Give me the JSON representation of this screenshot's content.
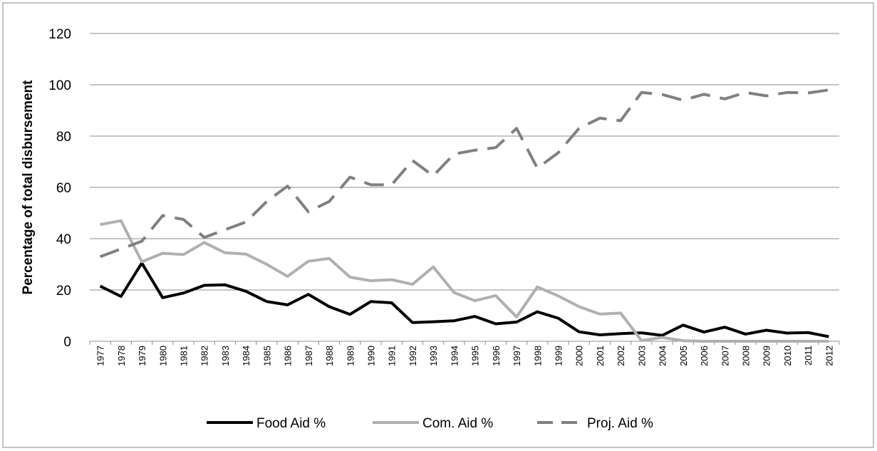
{
  "chart_data": {
    "type": "line",
    "y_label": "Percentage of  total disbursement",
    "categories": [
      "1977",
      "1978",
      "1979",
      "1980",
      "1981",
      "1982",
      "1983",
      "1984",
      "1985",
      "1986",
      "1987",
      "1988",
      "1989",
      "1990",
      "1991",
      "1992",
      "1993",
      "1994",
      "1995",
      "1996",
      "1997",
      "1998",
      "1999",
      "2000",
      "2001",
      "2002",
      "2003",
      "2004",
      "2005",
      "2006",
      "2007",
      "2008",
      "2009",
      "2010",
      "2011",
      "2012"
    ],
    "series": [
      {
        "name": "Food Aid %",
        "color": "#000000",
        "dashed": false,
        "values": [
          21.5,
          17.5,
          30.5,
          17,
          18.8,
          21.8,
          22,
          19.5,
          15.5,
          14.2,
          18.3,
          13.5,
          10.5,
          15.5,
          15,
          7.3,
          7.6,
          8,
          9.7,
          6.8,
          7.5,
          11.5,
          9,
          3.7,
          2.5,
          3,
          3.3,
          2.3,
          6.3,
          3.6,
          5.5,
          2.8,
          4.3,
          3.2,
          3.4,
          1.8
        ]
      },
      {
        "name": "Com. Aid %",
        "color": "#b0b0b0",
        "dashed": false,
        "values": [
          45.5,
          47,
          31,
          34.3,
          33.8,
          38.5,
          34.5,
          34,
          30,
          25.3,
          31.2,
          32.3,
          25,
          23.6,
          24,
          22.2,
          29,
          19,
          15.8,
          17.8,
          9.5,
          21.2,
          17.7,
          13.5,
          10.6,
          11,
          0.3,
          1.5,
          0.2,
          0,
          0,
          0,
          0,
          0,
          0,
          0
        ]
      },
      {
        "name": "Proj. Aid %",
        "color": "#808080",
        "dashed": true,
        "values": [
          33,
          36,
          39,
          49,
          47.5,
          40.5,
          43.5,
          46.5,
          54.5,
          60.5,
          50.5,
          54.5,
          64,
          61,
          61,
          70.5,
          64.5,
          73,
          74.5,
          75.5,
          83,
          67.5,
          73.5,
          83,
          87,
          86,
          97,
          96.2,
          94,
          96.3,
          94.5,
          97,
          95.7,
          97,
          96.8,
          98
        ]
      }
    ],
    "ylim": [
      0,
      120
    ],
    "yticks": [
      0,
      20,
      40,
      60,
      80,
      100,
      120
    ],
    "grid": true
  }
}
